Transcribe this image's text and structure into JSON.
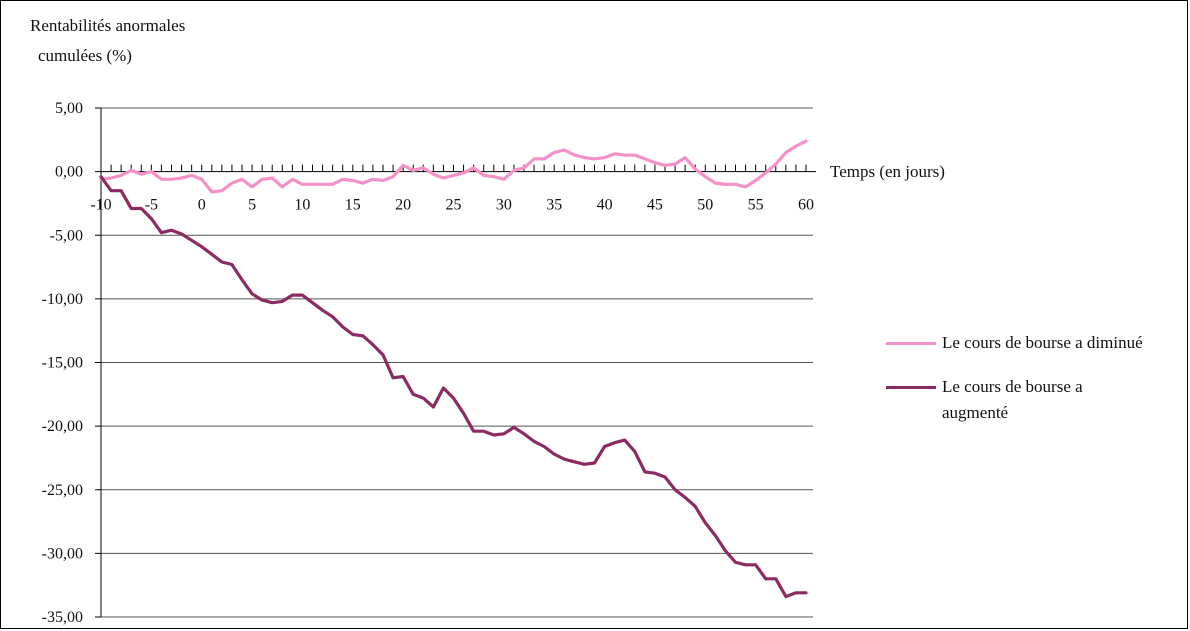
{
  "chart_data": {
    "type": "line",
    "ylabel_lines": [
      "Rentabilités anormales",
      "cumulées (%)"
    ],
    "xlabel": "Temps (en jours)",
    "ylim": [
      -35,
      5
    ],
    "yticks": [
      5,
      0,
      -5,
      -10,
      -15,
      -20,
      -25,
      -30,
      -35
    ],
    "ytick_labels": [
      "5,00",
      "0,00",
      "-5,00",
      "-10,00",
      "-15,00",
      "-20,00",
      "-25,00",
      "-30,00",
      "-35,00"
    ],
    "xlim": [
      -10,
      60
    ],
    "xticks": [
      -10,
      -5,
      0,
      5,
      10,
      15,
      20,
      25,
      30,
      35,
      40,
      45,
      50,
      55,
      60
    ],
    "xtick_labels": [
      "-10",
      "-5",
      "0",
      "5",
      "10",
      "15",
      "20",
      "25",
      "30",
      "35",
      "40",
      "45",
      "50",
      "55",
      "60"
    ],
    "grid": "horizontal",
    "legend_position": "right",
    "x": [
      -10,
      -9,
      -8,
      -7,
      -6,
      -5,
      -4,
      -3,
      -2,
      -1,
      0,
      1,
      2,
      3,
      4,
      5,
      6,
      7,
      8,
      9,
      10,
      11,
      12,
      13,
      14,
      15,
      16,
      17,
      18,
      19,
      20,
      21,
      22,
      23,
      24,
      25,
      26,
      27,
      28,
      29,
      30,
      31,
      32,
      33,
      34,
      35,
      36,
      37,
      38,
      39,
      40,
      41,
      42,
      43,
      44,
      45,
      46,
      47,
      48,
      49,
      50,
      51,
      52,
      53,
      54,
      55,
      56,
      57,
      58,
      59,
      60
    ],
    "series": [
      {
        "name": "Le cours de bourse a diminué",
        "color": "#f591c8",
        "values": [
          -0.6,
          -0.5,
          -0.3,
          0.1,
          -0.2,
          0.0,
          -0.6,
          -0.6,
          -0.5,
          -0.3,
          -0.6,
          -1.6,
          -1.5,
          -0.9,
          -0.6,
          -1.2,
          -0.6,
          -0.5,
          -1.2,
          -0.6,
          -1.0,
          -1.0,
          -1.0,
          -1.0,
          -0.6,
          -0.7,
          -0.9,
          -0.6,
          -0.7,
          -0.4,
          0.5,
          0.1,
          0.3,
          -0.2,
          -0.5,
          -0.3,
          -0.1,
          0.3,
          -0.3,
          -0.4,
          -0.6,
          0.1,
          0.3,
          1.0,
          1.0,
          1.5,
          1.7,
          1.3,
          1.1,
          1.0,
          1.1,
          1.4,
          1.3,
          1.3,
          1.0,
          0.7,
          0.5,
          0.6,
          1.1,
          0.2,
          -0.4,
          -0.9,
          -1.0,
          -1.0,
          -1.2,
          -0.7,
          -0.1,
          0.6,
          1.5,
          2.0,
          2.4
        ]
      },
      {
        "name": "Le cours de bourse a augmenté",
        "color": "#8b2b62",
        "values": [
          -0.4,
          -1.5,
          -1.5,
          -2.9,
          -2.9,
          -3.7,
          -4.8,
          -4.6,
          -4.9,
          -5.4,
          -5.9,
          -6.5,
          -7.1,
          -7.3,
          -8.5,
          -9.6,
          -10.1,
          -10.3,
          -10.2,
          -9.7,
          -9.7,
          -10.3,
          -10.9,
          -11.4,
          -12.2,
          -12.8,
          -12.9,
          -13.6,
          -14.4,
          -16.2,
          -16.1,
          -17.5,
          -17.8,
          -18.5,
          -17.0,
          -17.8,
          -19.0,
          -20.4,
          -20.4,
          -20.7,
          -20.6,
          -20.1,
          -20.6,
          -21.2,
          -21.6,
          -22.2,
          -22.6,
          -22.8,
          -23.0,
          -22.9,
          -21.6,
          -21.3,
          -21.1,
          -22.0,
          -23.6,
          -23.7,
          -24.0,
          -25.0,
          -25.6,
          -26.3,
          -27.6,
          -28.6,
          -29.8,
          -30.7,
          -30.9,
          -30.9,
          -32.0,
          -32.0,
          -33.4,
          -33.1,
          -33.1
        ]
      }
    ]
  }
}
